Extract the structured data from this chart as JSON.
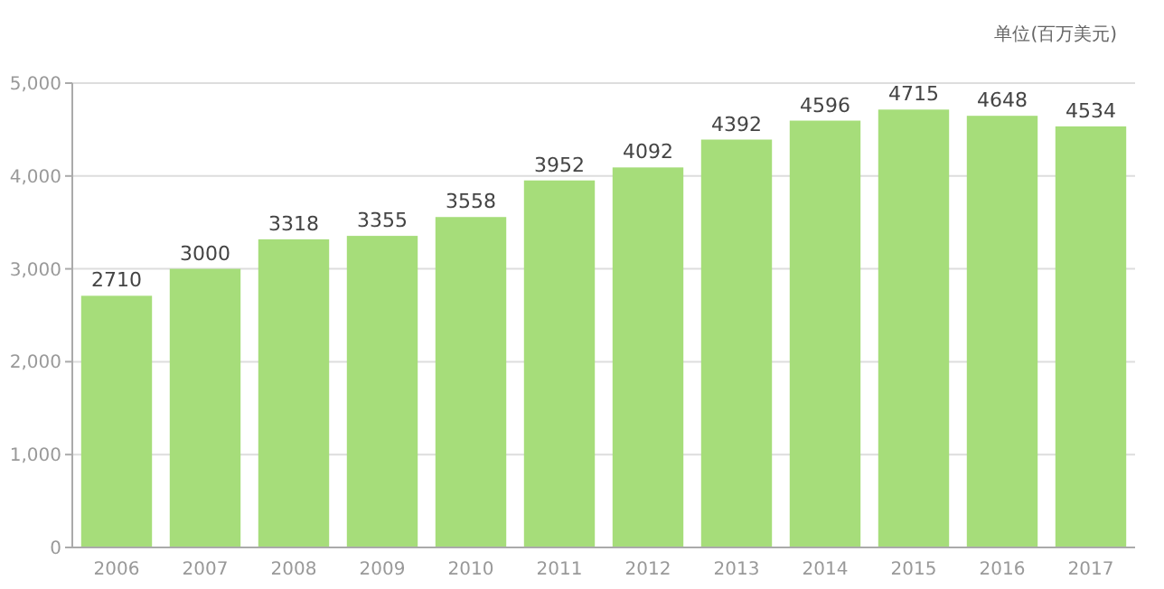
{
  "chart_data": {
    "type": "bar",
    "annotations": [
      "单位(百万美元)"
    ],
    "categories": [
      "2006",
      "2007",
      "2008",
      "2009",
      "2010",
      "2011",
      "2012",
      "2013",
      "2014",
      "2015",
      "2016",
      "2017"
    ],
    "values": [
      2710,
      3000,
      3318,
      3355,
      3558,
      3952,
      4092,
      4392,
      4596,
      4715,
      4648,
      4534
    ],
    "color": "#a6dd7a",
    "data_labels": true,
    "grid": "y",
    "ylim": [
      0,
      5000
    ],
    "yticks": [
      0,
      {
        "value": 1000,
        "label": "1,000"
      },
      {
        "value": 2000,
        "label": "2,000"
      },
      {
        "value": 3000,
        "label": "3,000"
      },
      {
        "value": 4000,
        "label": "4,000"
      },
      {
        "value": 5000,
        "label": "5,000"
      }
    ]
  }
}
